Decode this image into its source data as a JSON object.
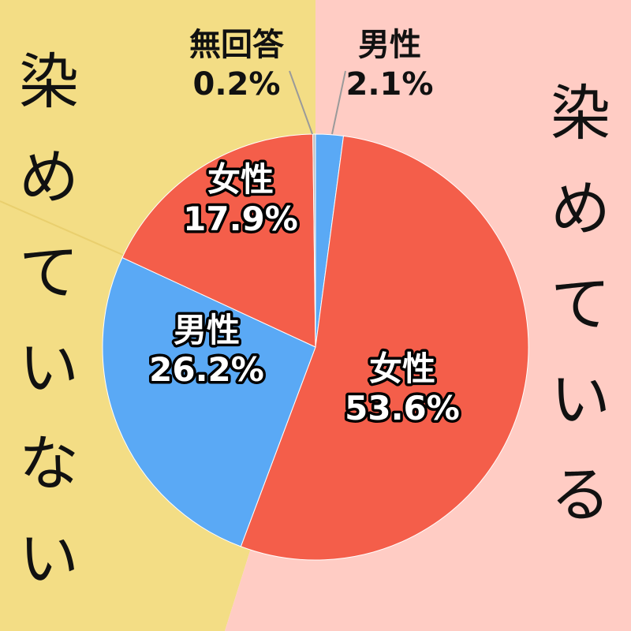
{
  "background_groups": {
    "not_dyed": {
      "label": "染めていない",
      "color": "#F3DD85"
    },
    "dyed": {
      "label": "染めている",
      "color": "#FFCCC4"
    }
  },
  "chart_data": {
    "type": "pie",
    "slices": [
      {
        "group": "染めている",
        "name": "男性",
        "value": 2.1,
        "label": "2.1%",
        "color": "#5AA9F5"
      },
      {
        "group": "染めている",
        "name": "女性",
        "value": 53.6,
        "label": "53.6%",
        "color": "#F45E4A"
      },
      {
        "group": "染めていない",
        "name": "男性",
        "value": 26.2,
        "label": "26.2%",
        "color": "#5AA9F5"
      },
      {
        "group": "染めていない",
        "name": "女性",
        "value": 17.9,
        "label": "17.9%",
        "color": "#F45E4A"
      },
      {
        "group": "",
        "name": "無回答",
        "value": 0.2,
        "label": "0.2%",
        "color": "#BFBFBF"
      }
    ]
  }
}
